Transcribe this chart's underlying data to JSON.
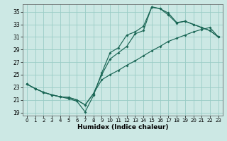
{
  "xlabel": "Humidex (Indice chaleur)",
  "xlim": [
    -0.5,
    23.5
  ],
  "ylim": [
    18.5,
    36.2
  ],
  "xticks": [
    0,
    1,
    2,
    3,
    4,
    5,
    6,
    7,
    8,
    9,
    10,
    11,
    12,
    13,
    14,
    15,
    16,
    17,
    18,
    19,
    20,
    21,
    22,
    23
  ],
  "yticks": [
    19,
    21,
    23,
    25,
    27,
    29,
    31,
    33,
    35
  ],
  "bg_color": "#cce8e4",
  "grid_color": "#99ccc6",
  "line_color": "#1a6655",
  "curve1_x": [
    0,
    1,
    2,
    3,
    4,
    5,
    6,
    7,
    8,
    9,
    10,
    11,
    12,
    13,
    14,
    15,
    16,
    17,
    18,
    19,
    20,
    21,
    22,
    23
  ],
  "curve1_y": [
    23.5,
    22.8,
    22.2,
    21.8,
    21.5,
    21.2,
    20.8,
    19.1,
    21.7,
    25.3,
    28.5,
    29.3,
    31.3,
    31.8,
    32.7,
    35.7,
    35.5,
    34.8,
    33.3,
    33.5,
    33.0,
    32.5,
    32.0,
    31.0
  ],
  "curve2_x": [
    0,
    1,
    2,
    3,
    4,
    5,
    6,
    7,
    8,
    9,
    10,
    11,
    12,
    13,
    14,
    15,
    16,
    17,
    18,
    19,
    20,
    21,
    22,
    23
  ],
  "curve2_y": [
    23.5,
    22.8,
    22.2,
    21.8,
    21.5,
    21.4,
    21.0,
    20.2,
    22.0,
    25.0,
    27.5,
    28.5,
    29.5,
    31.5,
    32.0,
    35.8,
    35.5,
    34.5,
    33.2,
    33.5,
    33.0,
    32.5,
    32.0,
    31.0
  ],
  "curve3_x": [
    0,
    1,
    2,
    3,
    4,
    5,
    6,
    7,
    8,
    9,
    10,
    11,
    12,
    13,
    14,
    15,
    16,
    17,
    18,
    19,
    20,
    21,
    22,
    23
  ],
  "curve3_y": [
    23.5,
    22.8,
    22.2,
    21.8,
    21.5,
    21.4,
    21.0,
    20.2,
    22.0,
    24.2,
    25.0,
    25.7,
    26.5,
    27.2,
    28.0,
    28.8,
    29.5,
    30.3,
    30.8,
    31.3,
    31.8,
    32.2,
    32.5,
    31.0
  ]
}
